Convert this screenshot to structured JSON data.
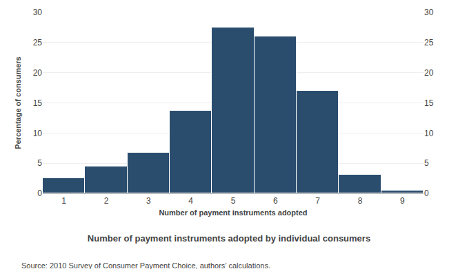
{
  "chart_data": {
    "type": "bar",
    "title": "Number of payment instruments adopted by individual consumers",
    "xlabel": "Number of payment instruments adopted",
    "ylabel": "Percentage of consumers",
    "x": [
      1,
      2,
      3,
      4,
      5,
      6,
      7,
      8,
      9
    ],
    "values": [
      2.5,
      4.5,
      6.7,
      13.7,
      27.5,
      26.0,
      17.0,
      3.1,
      0.4
    ],
    "color": "#2A4D6E",
    "xlim": [
      0.5,
      9.5
    ],
    "xticks": [
      1,
      2,
      3,
      4,
      5,
      6,
      7,
      8,
      9
    ],
    "ylim": [
      0,
      30
    ],
    "yticks": [
      0,
      5,
      10,
      15,
      20,
      25,
      30
    ],
    "y2lim": [
      0,
      30
    ],
    "y2ticks": [
      0,
      5,
      10,
      15,
      20,
      25,
      30
    ],
    "grid": true,
    "annotations": [
      "Source: 2010 Survey of Consumer Payment Choice, authors’ calculations."
    ]
  }
}
